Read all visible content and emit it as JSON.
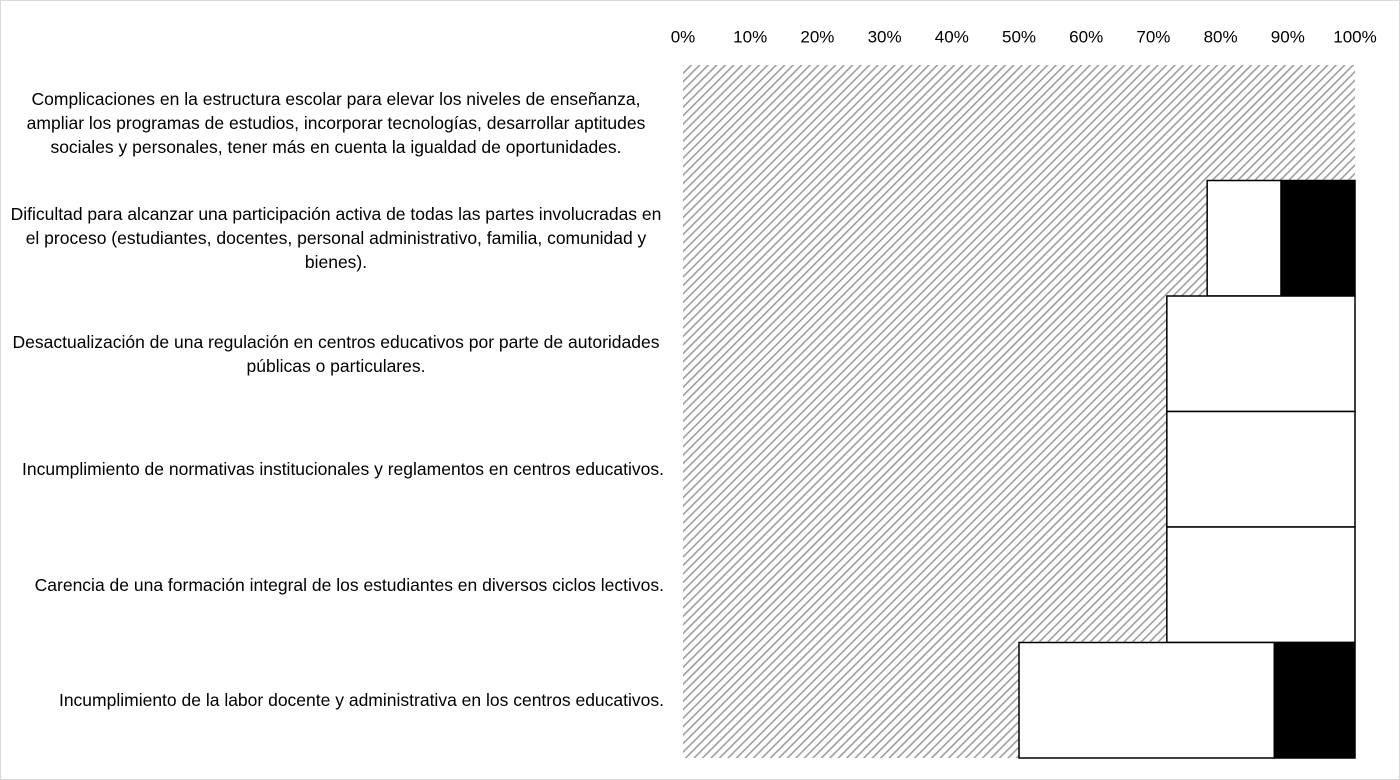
{
  "chart_data": {
    "type": "stacked-bar-horizontal",
    "categories": [
      "Complicaciones en la estructura escolar para elevar los niveles de enseñanza, ampliar los programas de estudios, incorporar tecnologías, desarrollar aptitudes sociales y personales, tener más en cuenta la igualdad de oportunidades.",
      "Dificultad para alcanzar una participación activa de todas las partes involucradas en el proceso (estudiantes, docentes, personal administrativo, familia, comunidad y bienes).",
      "Desactualización de una regulación en centros educativos por parte de autoridades públicas o particulares.",
      "Incumplimiento de normativas institucionales y reglamentos en centros educativos.",
      "Carencia de una formación integral de los estudiantes en diversos ciclos lectivos.",
      "Incumplimiento de la labor docente y administrativa en los centros educativos."
    ],
    "series": [
      {
        "color": "#9e9e9e",
        "fill_pattern": "diagonal-hatch",
        "values": [
          100,
          78,
          72,
          72,
          72,
          50
        ]
      },
      {
        "color": "#ffffff",
        "values": [
          0,
          11,
          28,
          28,
          28,
          38
        ]
      },
      {
        "color": "#000000",
        "values": [
          0,
          11,
          0,
          0,
          0,
          12
        ]
      }
    ],
    "xlim": [
      0,
      100
    ],
    "xticks": [
      {
        "value": 0,
        "label": "0%"
      },
      {
        "value": 10,
        "label": "10%"
      },
      {
        "value": 20,
        "label": "20%"
      },
      {
        "value": 30,
        "label": "30%"
      },
      {
        "value": 40,
        "label": "40%"
      },
      {
        "value": 50,
        "label": "50%"
      },
      {
        "value": 60,
        "label": "60%"
      },
      {
        "value": 70,
        "label": "70%"
      },
      {
        "value": 80,
        "label": "80%"
      },
      {
        "value": 90,
        "label": "90%"
      },
      {
        "value": 100,
        "label": "100%"
      }
    ],
    "xaxis_position": "top"
  }
}
